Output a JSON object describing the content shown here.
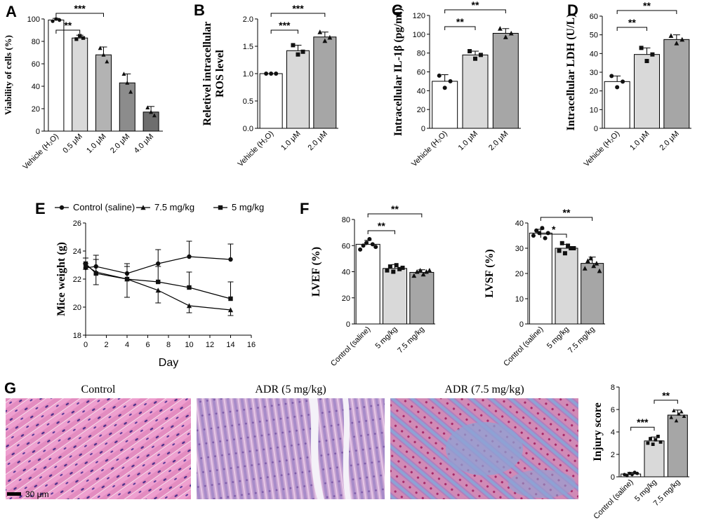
{
  "colors": {
    "white": "#ffffff",
    "light": "#d9d9d9",
    "mid": "#b3b3b3",
    "dark": "#8c8c8c",
    "darker": "#6e6e6e",
    "he_pink": "#e98fc3",
    "masson_blue": "#8aa4d6"
  },
  "panels": [
    {
      "id": "A",
      "label": "A",
      "type": "bar",
      "ylabel": "Viability of cells (%)",
      "categories": [
        "Vehicle (H2O)",
        "0.5 μM",
        "1.0 μM",
        "2.0 μM",
        "4.0 μM"
      ],
      "values": [
        99,
        83,
        68,
        43,
        17
      ],
      "errors": [
        1.5,
        2.5,
        7,
        8,
        5
      ],
      "points": [
        [
          98,
          100,
          99
        ],
        [
          82,
          85,
          83
        ],
        [
          74,
          68,
          62
        ],
        [
          51,
          43,
          35
        ],
        [
          21,
          17,
          14
        ]
      ],
      "fills": [
        "#ffffff",
        "#d9d9d9",
        "#b3b3b3",
        "#8c8c8c",
        "#6e6e6e"
      ],
      "ylim": [
        0,
        100
      ],
      "yticks": [
        0,
        20,
        40,
        60,
        80,
        100
      ],
      "markers": [
        "circle",
        "square",
        "triangle",
        "triangle",
        "triangle"
      ],
      "sig": [
        {
          "from": 0,
          "to": 1,
          "label": "**"
        },
        {
          "from": 0,
          "to": 2,
          "label": "***"
        }
      ]
    },
    {
      "id": "B",
      "label": "B",
      "type": "bar",
      "ylabel": [
        "Reletivel intracellular",
        "ROS level"
      ],
      "categories": [
        "Vehicle (H2O)",
        "1.0 μM",
        "2.0 μM"
      ],
      "values": [
        1.0,
        1.42,
        1.67
      ],
      "errors": [
        0,
        0.1,
        0.09
      ],
      "points": [
        [
          1.0,
          1.0,
          1.0
        ],
        [
          1.52,
          1.35,
          1.4
        ],
        [
          1.76,
          1.6,
          1.66
        ]
      ],
      "fills": [
        "#ffffff",
        "#d9d9d9",
        "#a6a6a6"
      ],
      "ylim": [
        0,
        2.0
      ],
      "yticks": [
        0.0,
        0.5,
        1.0,
        1.5,
        2.0
      ],
      "markers": [
        "circle",
        "square",
        "triangle"
      ],
      "sig": [
        {
          "from": 0,
          "to": 1,
          "label": "***"
        },
        {
          "from": 0,
          "to": 2,
          "label": "***"
        }
      ]
    },
    {
      "id": "C",
      "label": "C",
      "type": "bar",
      "ylabel": "Intracellular IL-1β (pg/ml)",
      "categories": [
        "Vehicle (H2O)",
        "1.0 μM",
        "2.0 μM"
      ],
      "values": [
        50,
        78,
        101
      ],
      "errors": [
        7,
        4,
        5
      ],
      "points": [
        [
          56,
          43,
          50
        ],
        [
          82,
          74,
          78
        ],
        [
          106,
          97,
          101
        ]
      ],
      "fills": [
        "#ffffff",
        "#d9d9d9",
        "#a6a6a6"
      ],
      "ylim": [
        0,
        120
      ],
      "yticks": [
        0,
        20,
        40,
        60,
        80,
        100,
        120
      ],
      "markers": [
        "circle",
        "square",
        "triangle"
      ],
      "sig": [
        {
          "from": 0,
          "to": 1,
          "label": "**"
        },
        {
          "from": 0,
          "to": 2,
          "label": "**"
        }
      ]
    },
    {
      "id": "D",
      "label": "D",
      "type": "bar",
      "ylabel": "Intracellular LDH (U/L)",
      "categories": [
        "Vehicle (H2O)",
        "1.0 μM",
        "2.0 μM"
      ],
      "values": [
        25,
        39.5,
        47.5
      ],
      "errors": [
        3,
        3.5,
        2.5
      ],
      "points": [
        [
          28,
          22,
          25
        ],
        [
          43,
          36,
          39.5
        ],
        [
          49.5,
          45.5,
          47.5
        ]
      ],
      "fills": [
        "#ffffff",
        "#d9d9d9",
        "#a6a6a6"
      ],
      "ylim": [
        0,
        60
      ],
      "yticks": [
        0,
        10,
        20,
        30,
        40,
        50,
        60
      ],
      "markers": [
        "circle",
        "square",
        "triangle"
      ],
      "sig": [
        {
          "from": 0,
          "to": 1,
          "label": "**"
        },
        {
          "from": 0,
          "to": 2,
          "label": "**"
        }
      ]
    },
    {
      "id": "E",
      "label": "E",
      "type": "line",
      "xlabel": "Day",
      "ylabel": "Mice weight (g)",
      "xlim": [
        0,
        16
      ],
      "xticks": [
        0,
        2,
        4,
        6,
        8,
        10,
        12,
        14,
        16
      ],
      "ylim": [
        18,
        26
      ],
      "yticks": [
        18,
        20,
        22,
        24,
        26
      ],
      "x": [
        0,
        1,
        4,
        7,
        10,
        14
      ],
      "series": [
        {
          "name": "Control (saline)",
          "marker": "circle",
          "values": [
            22.8,
            22.9,
            22.4,
            23.1,
            23.6,
            23.4
          ],
          "errors": [
            0.3,
            0.5,
            0.7,
            1.0,
            1.1,
            1.1
          ]
        },
        {
          "name": "7.5 mg/kg",
          "marker": "triangle",
          "values": [
            23.0,
            22.5,
            22.0,
            21.2,
            20.1,
            19.8
          ],
          "errors": [
            0.3,
            0.9,
            1.3,
            0.9,
            0.5,
            0.4
          ]
        },
        {
          "name": "5 mg/kg",
          "marker": "square",
          "values": [
            23.1,
            22.4,
            22.0,
            21.8,
            21.4,
            20.6
          ],
          "errors": [
            0.4,
            1.3,
            0.9,
            1.1,
            1.1,
            1.2
          ]
        }
      ]
    },
    {
      "id": "F1",
      "label": "F",
      "type": "bar",
      "ylabel": "LVEF (%)",
      "categories": [
        "Control (saline)",
        "5 mg/kg",
        "7.5 mg/kg"
      ],
      "values": [
        61,
        42.5,
        39.5
      ],
      "errors": [
        3,
        3,
        2
      ],
      "points": [
        [
          57,
          60,
          62,
          65,
          61,
          59
        ],
        [
          41,
          44,
          40,
          45,
          42,
          43
        ],
        [
          37,
          40,
          41,
          38,
          40,
          41
        ]
      ],
      "fills": [
        "#ffffff",
        "#d9d9d9",
        "#a6a6a6"
      ],
      "ylim": [
        0,
        80
      ],
      "yticks": [
        0,
        20,
        40,
        60,
        80
      ],
      "markers": [
        "circle",
        "square",
        "triangle"
      ],
      "sig": [
        {
          "from": 0,
          "to": 1,
          "label": "**"
        },
        {
          "from": 0,
          "to": 2,
          "label": "**"
        }
      ]
    },
    {
      "id": "F2",
      "label": "",
      "type": "bar",
      "ylabel": "LVSF (%)",
      "categories": [
        "Control (saline)",
        "5 mg/kg",
        "7.5 mg/kg"
      ],
      "values": [
        36,
        30,
        24
      ],
      "errors": [
        1.5,
        1.5,
        2.5
      ],
      "points": [
        [
          35,
          37,
          36,
          38,
          34,
          36
        ],
        [
          29,
          32,
          28,
          31,
          30,
          30
        ],
        [
          22,
          25,
          26,
          23,
          24,
          21
        ]
      ],
      "fills": [
        "#ffffff",
        "#d9d9d9",
        "#a6a6a6"
      ],
      "ylim": [
        0,
        40
      ],
      "yticks": [
        0,
        10,
        20,
        30,
        40
      ],
      "markers": [
        "circle",
        "square",
        "triangle"
      ],
      "sig": [
        {
          "from": 0,
          "to": 1,
          "label": "*"
        },
        {
          "from": 0,
          "to": 2,
          "label": "**"
        }
      ]
    },
    {
      "id": "G",
      "label": "G",
      "type": "bar",
      "ylabel": "Injury score",
      "categories": [
        "Control (saline)",
        "5 mg/kg",
        "7.5 mg/kg"
      ],
      "values": [
        0.25,
        3.2,
        5.5
      ],
      "errors": [
        0.15,
        0.35,
        0.45
      ],
      "points": [
        [
          0.2,
          0.1,
          0.3,
          0.2,
          0.4,
          0.3
        ],
        [
          3.0,
          3.4,
          2.9,
          3.3,
          3.6,
          3.1
        ],
        [
          5.3,
          5.9,
          5.0,
          5.6,
          5.8,
          5.4
        ]
      ],
      "fills": [
        "#ffffff",
        "#d9d9d9",
        "#a6a6a6"
      ],
      "ylim": [
        0,
        8
      ],
      "yticks": [
        0,
        2,
        4,
        6,
        8
      ],
      "markers": [
        "circle",
        "square",
        "triangle"
      ],
      "sig": [
        {
          "from": 1,
          "to": 2,
          "label": "**"
        },
        {
          "from": 0,
          "to": 1,
          "label": "***"
        }
      ]
    }
  ],
  "histology": {
    "titles": [
      "Control",
      "ADR (5 mg/kg)",
      "ADR (7.5 mg/kg)"
    ],
    "scale_bar": "30 μm"
  },
  "chart_data": [
    {
      "type": "bar",
      "title": "",
      "ylabel": "Viability of cells (%)",
      "categories": [
        "Vehicle (H2O)",
        "0.5 μM",
        "1.0 μM",
        "2.0 μM",
        "4.0 μM"
      ],
      "values": [
        99,
        83,
        68,
        43,
        17
      ],
      "ylim": [
        0,
        100
      ]
    },
    {
      "type": "bar",
      "ylabel": "Reletivel intracellular ROS level",
      "categories": [
        "Vehicle (H2O)",
        "1.0 μM",
        "2.0 μM"
      ],
      "values": [
        1.0,
        1.42,
        1.67
      ],
      "ylim": [
        0,
        2.0
      ]
    },
    {
      "type": "bar",
      "ylabel": "Intracellular IL-1β (pg/ml)",
      "categories": [
        "Vehicle (H2O)",
        "1.0 μM",
        "2.0 μM"
      ],
      "values": [
        50,
        78,
        101
      ],
      "ylim": [
        0,
        120
      ]
    },
    {
      "type": "bar",
      "ylabel": "Intracellular LDH (U/L)",
      "categories": [
        "Vehicle (H2O)",
        "1.0 μM",
        "2.0 μM"
      ],
      "values": [
        25,
        39.5,
        47.5
      ],
      "ylim": [
        0,
        60
      ]
    },
    {
      "type": "line",
      "xlabel": "Day",
      "ylabel": "Mice weight (g)",
      "x": [
        0,
        1,
        4,
        7,
        10,
        14
      ],
      "series": [
        {
          "name": "Control (saline)",
          "values": [
            22.8,
            22.9,
            22.4,
            23.1,
            23.6,
            23.4
          ]
        },
        {
          "name": "7.5 mg/kg",
          "values": [
            23.0,
            22.5,
            22.0,
            21.2,
            20.1,
            19.8
          ]
        },
        {
          "name": "5 mg/kg",
          "values": [
            23.1,
            22.4,
            22.0,
            21.8,
            21.4,
            20.6
          ]
        }
      ],
      "xlim": [
        0,
        16
      ],
      "ylim": [
        18,
        26
      ]
    },
    {
      "type": "bar",
      "ylabel": "LVEF (%)",
      "categories": [
        "Control (saline)",
        "5 mg/kg",
        "7.5 mg/kg"
      ],
      "values": [
        61,
        42.5,
        39.5
      ],
      "ylim": [
        0,
        80
      ]
    },
    {
      "type": "bar",
      "ylabel": "LVSF (%)",
      "categories": [
        "Control (saline)",
        "5 mg/kg",
        "7.5 mg/kg"
      ],
      "values": [
        36,
        30,
        24
      ],
      "ylim": [
        0,
        40
      ]
    },
    {
      "type": "bar",
      "ylabel": "Injury score",
      "categories": [
        "Control (saline)",
        "5 mg/kg",
        "7.5 mg/kg"
      ],
      "values": [
        0.25,
        3.2,
        5.5
      ],
      "ylim": [
        0,
        8
      ]
    }
  ]
}
